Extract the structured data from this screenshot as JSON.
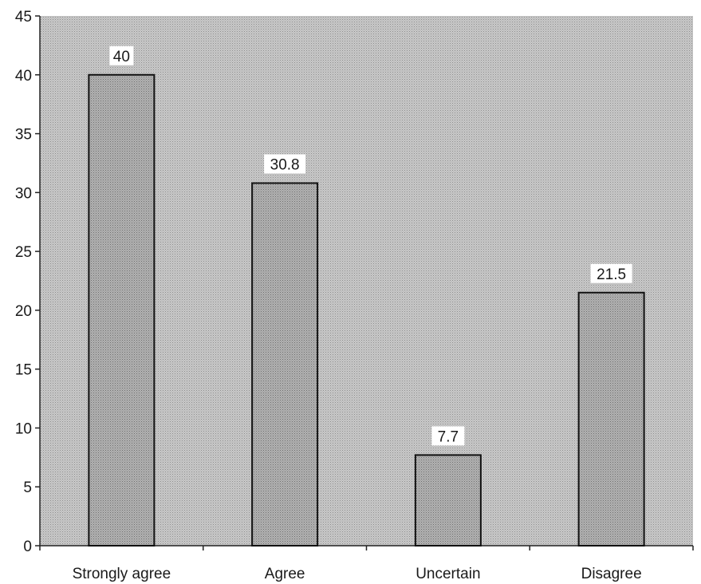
{
  "chart_data": {
    "type": "bar",
    "title": "",
    "xlabel": "",
    "ylabel": "",
    "categories": [
      "Strongly agree",
      "Agree",
      "Uncertain",
      "Disagree"
    ],
    "values": [
      40,
      30.8,
      7.7,
      21.5
    ],
    "data_labels": [
      "40",
      "30.8",
      "7.7",
      "21.5"
    ],
    "ylim": [
      0,
      45
    ],
    "yticks": [
      0,
      5,
      10,
      15,
      20,
      25,
      30,
      35,
      40,
      45
    ],
    "grid": false,
    "legend": "none",
    "colors": {
      "plot_background": "#c4c4c4",
      "bar_fill": "#a9a9a9",
      "bar_stroke": "#111111",
      "label_background": "#ffffff"
    }
  }
}
